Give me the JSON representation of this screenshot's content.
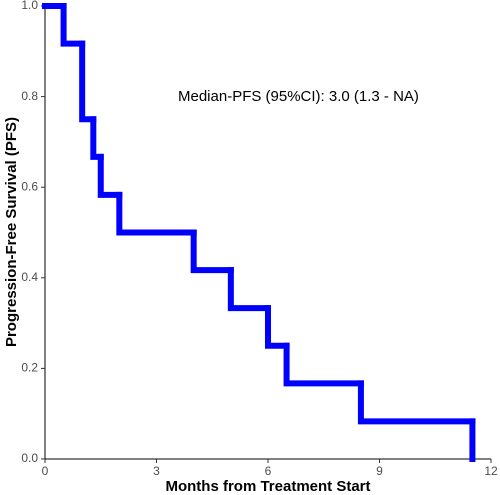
{
  "chart_data": {
    "type": "step",
    "x_label": "Months from Treatment Start",
    "y_label": "Progression-Free Survival (PFS)",
    "annotation": "Median-PFS (95%CI): 3.0 (1.3 - NA)",
    "series": [
      {
        "color": "#0000ff",
        "x": [
          0,
          0.5,
          1,
          1.3,
          1.5,
          2,
          4,
          5,
          6,
          6.5,
          8.5,
          11.5
        ],
        "values": [
          1.0,
          0.917,
          0.75,
          0.667,
          0.583,
          0.5,
          0.417,
          0.333,
          0.25,
          0.167,
          0.083,
          0.0
        ]
      }
    ],
    "xlim": [
      0,
      12
    ],
    "xticks": [
      0,
      3,
      6,
      9,
      12
    ],
    "ylim": [
      0,
      1
    ],
    "yticks": [
      {
        "value": 0,
        "label": "0.0"
      },
      {
        "value": 0.2,
        "label": "0.2"
      },
      {
        "value": 0.4,
        "label": "0.4"
      },
      {
        "value": 0.6,
        "label": "0.6"
      },
      {
        "value": 0.8,
        "label": "0.8"
      },
      {
        "value": 1,
        "label": "1.0"
      }
    ]
  }
}
